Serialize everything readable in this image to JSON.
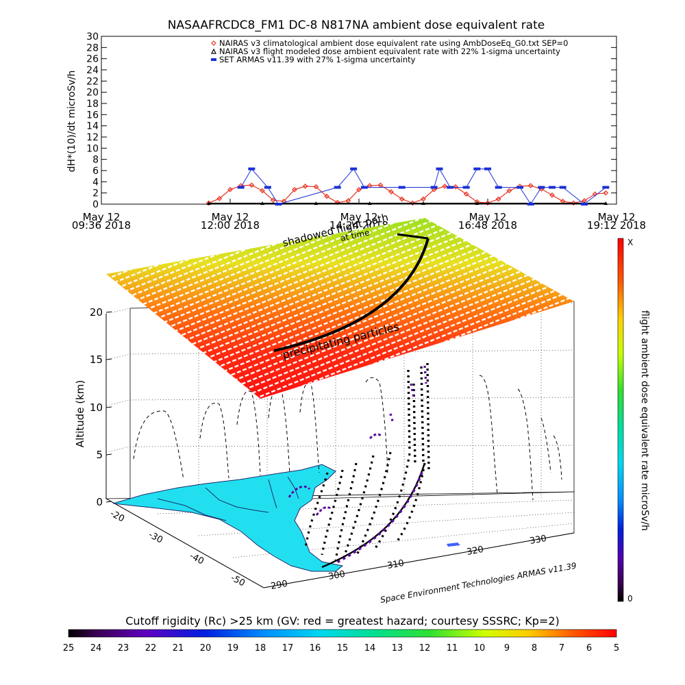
{
  "title": "NASAAFRCDC8_FM1 DC-8    N817NA ambient dose equivalent rate",
  "colors": {
    "nairas_clim": "#e8301e",
    "nairas_flight": "#000000",
    "armas": "#1a2fd6",
    "land": "#22dff0"
  },
  "chart_data": [
    {
      "type": "line",
      "title": "NASAAFRCDC8_FM1 DC-8    N817NA ambient dose equivalent rate",
      "ylabel": "dH*(10)/dt microSv/h",
      "ylim": [
        0,
        30
      ],
      "ytick_step": 2,
      "xlim_hours": [
        9.6,
        19.2
      ],
      "xticks": [
        {
          "hour": 9.6,
          "line1": "May 12",
          "line2": "09:36 2018"
        },
        {
          "hour": 12.0,
          "line1": "May 12",
          "line2": "12:00 2018"
        },
        {
          "hour": 14.4,
          "line1": "May 12",
          "line2": "14:24 2018"
        },
        {
          "hour": 16.8,
          "line1": "May 12",
          "line2": "16:48 2018"
        },
        {
          "hour": 19.2,
          "line1": "May 12",
          "line2": "19:12 2018"
        }
      ],
      "legend_position": "top-right",
      "series": [
        {
          "name": "NAIRAS v3 climatological ambient dose equivalent rate using AmbDoseEq_G0.txt SEP=0",
          "marker": "diamond",
          "color": "#e8301e",
          "x": [
            11.6,
            11.8,
            12.0,
            12.2,
            12.4,
            12.6,
            12.8,
            13.0,
            13.2,
            13.4,
            13.6,
            13.8,
            14.0,
            14.2,
            14.4,
            14.6,
            14.8,
            15.0,
            15.2,
            15.4,
            15.6,
            15.8,
            16.0,
            16.2,
            16.4,
            16.6,
            16.8,
            17.0,
            17.2,
            17.4,
            17.6,
            17.8,
            18.0,
            18.2,
            18.4,
            18.6,
            18.8,
            19.0
          ],
          "y": [
            0.2,
            1.0,
            2.6,
            3.3,
            3.4,
            2.4,
            0.7,
            0.5,
            2.6,
            3.2,
            3.1,
            1.4,
            0.3,
            0.6,
            2.6,
            3.3,
            3.4,
            2.2,
            0.9,
            0.2,
            0.9,
            2.6,
            3.2,
            3.1,
            1.8,
            0.4,
            0.2,
            0.9,
            2.4,
            3.2,
            3.3,
            2.7,
            1.6,
            0.5,
            0.2,
            0.6,
            1.8,
            2.0
          ]
        },
        {
          "name": "NAIRAS v3 flight modeled dose ambient equivalent rate with 22% 1-sigma uncertainty",
          "marker": "triangle",
          "color": "#000000",
          "x": [
            11.6,
            12.6,
            13.6,
            14.6,
            15.6,
            16.6,
            17.6,
            18.6,
            19.0
          ],
          "y": [
            0.1,
            0.1,
            0.1,
            0.1,
            0.1,
            0.1,
            0.1,
            0.1,
            0.1
          ]
        },
        {
          "name": "SET ARMAS v11.39 with 27% 1-sigma uncertainty",
          "marker": "dot",
          "color": "#1a2fd6",
          "x": [
            12.2,
            12.4,
            12.7,
            12.9,
            14.0,
            14.3,
            14.5,
            15.2,
            15.8,
            15.9,
            16.1,
            16.4,
            16.6,
            16.8,
            17.0,
            17.4,
            17.6,
            17.8,
            18.0,
            18.2,
            18.6,
            19.0
          ],
          "y": [
            3.0,
            6.3,
            3.0,
            0.0,
            3.0,
            6.3,
            3.0,
            3.0,
            3.0,
            6.3,
            3.0,
            3.0,
            6.3,
            6.3,
            3.0,
            3.0,
            0.0,
            3.0,
            3.0,
            3.0,
            0.0,
            3.0
          ]
        }
      ]
    },
    {
      "type": "scatter",
      "title": "",
      "zlabel": "Altitude (km)",
      "zticks": [
        "0",
        "5",
        "10",
        "15",
        "20"
      ],
      "lat_ticks": [
        "-20",
        "-30",
        "-40",
        "-50"
      ],
      "lon_ticks": [
        "290",
        "300",
        "310",
        "320",
        "330"
      ],
      "annotations": [
        "shadowed flight path",
        "at time",
        "precipitating particles"
      ],
      "colorbar": {
        "label": "flight ambient dose equivalent rate microSv/h",
        "top": "X",
        "bottom": "0"
      },
      "credit": "Space Environment Technologies ARMAS v11.39"
    },
    {
      "type": "heatmap",
      "title": "Cutoff rigidity (Rc) >25 km (GV: red = greatest hazard; courtesy SSSRC; Kp=2)",
      "ticks": [
        "25",
        "24",
        "23",
        "22",
        "21",
        "20",
        "19",
        "18",
        "17",
        "16",
        "15",
        "14",
        "13",
        "12",
        "11",
        "10",
        "9",
        "8",
        "7",
        "6",
        "5"
      ]
    }
  ]
}
